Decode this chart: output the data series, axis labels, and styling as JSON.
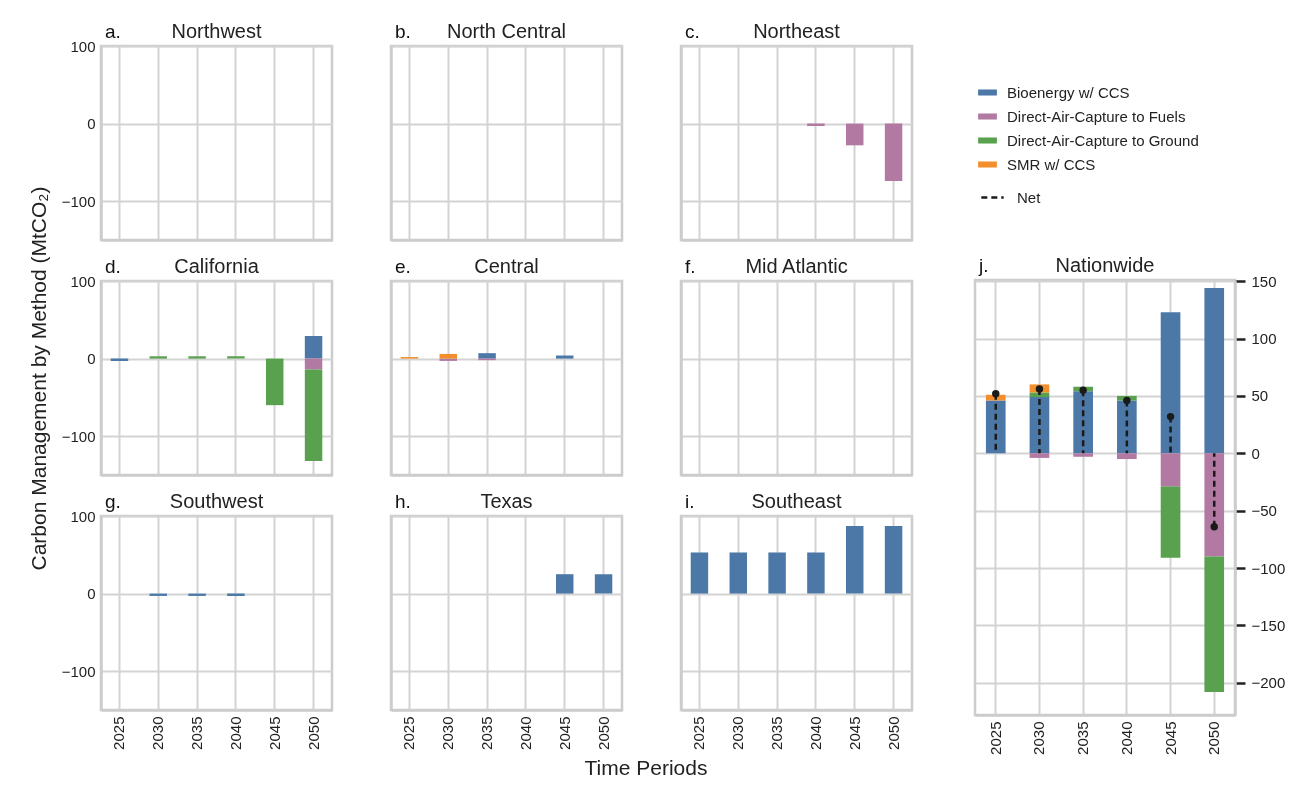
{
  "chart_data": [
    {
      "type": "bar",
      "title": "Northwest",
      "annotations": [
        "a."
      ],
      "stacked": true,
      "categories": [
        "2025",
        "2030",
        "2035",
        "2040",
        "2045",
        "2050"
      ],
      "ylim": [
        -150,
        100
      ],
      "yticks": [
        -100,
        0,
        100
      ],
      "grid": true,
      "tick_labels": "y",
      "series": [
        {
          "color": "#4c78a8",
          "values": [
            0,
            0,
            0,
            0,
            0,
            0
          ]
        }
      ]
    },
    {
      "type": "bar",
      "title": "North Central",
      "annotations": [
        "b."
      ],
      "stacked": true,
      "categories": [
        "2025",
        "2030",
        "2035",
        "2040",
        "2045",
        "2050"
      ],
      "ylim": [
        -150,
        100
      ],
      "yticks": [
        -100,
        0,
        100
      ],
      "grid": true,
      "tick_labels": false,
      "series": [
        {
          "color": "#4c78a8",
          "values": [
            0,
            0,
            0,
            0,
            0,
            0
          ]
        }
      ]
    },
    {
      "type": "bar",
      "title": "Northeast",
      "annotations": [
        "c."
      ],
      "stacked": true,
      "categories": [
        "2025",
        "2030",
        "2035",
        "2040",
        "2045",
        "2050"
      ],
      "ylim": [
        -150,
        100
      ],
      "yticks": [
        -100,
        0,
        100
      ],
      "grid": true,
      "tick_labels": false,
      "series": [
        {
          "color": "#b279a2",
          "values": [
            0,
            0,
            0,
            -3,
            -28,
            -74
          ]
        }
      ]
    },
    {
      "type": "bar",
      "title": "California",
      "annotations": [
        "d."
      ],
      "ylabel": "Carbon Management by Method (MtCO₂)",
      "stacked": true,
      "categories": [
        "2025",
        "2030",
        "2035",
        "2040",
        "2045",
        "2050"
      ],
      "ylim": [
        -150,
        100
      ],
      "yticks": [
        -100,
        0,
        100
      ],
      "grid": true,
      "tick_labels": "y",
      "series": [
        {
          "color": "#4c78a8",
          "values": [
            -3,
            0,
            0,
            0,
            0,
            29
          ]
        },
        {
          "color": "#b279a2",
          "values": [
            0,
            0,
            0,
            0,
            0,
            -14
          ]
        },
        {
          "color": "#59a14f",
          "values": [
            0,
            3,
            3,
            3,
            -60,
            -118
          ]
        }
      ]
    },
    {
      "type": "bar",
      "title": "Central",
      "annotations": [
        "e."
      ],
      "stacked": true,
      "categories": [
        "2025",
        "2030",
        "2035",
        "2040",
        "2045",
        "2050"
      ],
      "ylim": [
        -150,
        100
      ],
      "yticks": [
        -100,
        0,
        100
      ],
      "grid": true,
      "tick_labels": false,
      "series": [
        {
          "color": "#4c78a8",
          "values": [
            0,
            0,
            7,
            0,
            4,
            0
          ]
        },
        {
          "color": "#b279a2",
          "values": [
            0,
            -3,
            -2,
            0,
            0,
            0
          ]
        },
        {
          "color": "#f28e2b",
          "values": [
            2,
            6,
            0,
            0,
            0,
            0
          ]
        }
      ]
    },
    {
      "type": "bar",
      "title": "Mid Atlantic",
      "annotations": [
        "f."
      ],
      "stacked": true,
      "categories": [
        "2025",
        "2030",
        "2035",
        "2040",
        "2045",
        "2050"
      ],
      "ylim": [
        -150,
        100
      ],
      "yticks": [
        -100,
        0,
        100
      ],
      "grid": true,
      "tick_labels": false,
      "series": [
        {
          "color": "#4c78a8",
          "values": [
            0,
            0,
            0,
            0,
            0,
            0
          ]
        }
      ]
    },
    {
      "type": "bar",
      "title": "Southwest",
      "annotations": [
        "g."
      ],
      "stacked": true,
      "categories": [
        "2025",
        "2030",
        "2035",
        "2040",
        "2045",
        "2050"
      ],
      "ylim": [
        -150,
        100
      ],
      "yticks": [
        -100,
        0,
        100
      ],
      "grid": true,
      "series": [
        {
          "color": "#4c78a8",
          "values": [
            0,
            -3,
            -3,
            -3,
            0,
            0
          ]
        }
      ]
    },
    {
      "type": "bar",
      "title": "Texas",
      "annotations": [
        "h."
      ],
      "xlabel": "Time Periods",
      "stacked": true,
      "categories": [
        "2025",
        "2030",
        "2035",
        "2040",
        "2045",
        "2050"
      ],
      "ylim": [
        -150,
        100
      ],
      "yticks": [
        -100,
        0,
        100
      ],
      "grid": true,
      "tick_labels": "x",
      "series": [
        {
          "color": "#4c78a8",
          "values": [
            0,
            0,
            0,
            0,
            25,
            25
          ]
        }
      ]
    },
    {
      "type": "bar",
      "title": "Southeast",
      "annotations": [
        "i."
      ],
      "stacked": true,
      "categories": [
        "2025",
        "2030",
        "2035",
        "2040",
        "2045",
        "2050"
      ],
      "ylim": [
        -150,
        100
      ],
      "yticks": [
        -100,
        0,
        100
      ],
      "grid": true,
      "tick_labels": "x",
      "series": [
        {
          "color": "#4c78a8",
          "values": [
            53,
            53,
            53,
            53,
            87,
            87
          ]
        }
      ]
    },
    {
      "type": "bar",
      "title": "Nationwide",
      "annotations": [
        "j."
      ],
      "stacked": true,
      "categories": [
        "2025",
        "2030",
        "2035",
        "2040",
        "2045",
        "2050"
      ],
      "ylim": [
        -228,
        151
      ],
      "yticks": [
        -200,
        -150,
        -100,
        -50,
        0,
        50,
        100,
        150
      ],
      "grid": true,
      "legend": "top",
      "series": [
        {
          "name": "Bioenergy w/ CCS",
          "color": "#4c78a8",
          "values": [
            46,
            49,
            54,
            46,
            123,
            144
          ]
        },
        {
          "name": "Direct-Air-Capture to Fuels",
          "color": "#b279a2",
          "values": [
            0,
            -4,
            -3,
            -5,
            -29,
            -90
          ]
        },
        {
          "name": "Direct-Air-Capture to Ground",
          "color": "#59a14f",
          "values": [
            0,
            4,
            4,
            4,
            -62,
            -118
          ]
        },
        {
          "name": "SMR w/ CCS",
          "color": "#f28e2b",
          "values": [
            5,
            7,
            0,
            0,
            0,
            0
          ]
        },
        {
          "name": "Net",
          "type": "lollipop",
          "color": "#1a1a1a",
          "line_style": "dashed",
          "marker": "circle",
          "values": [
            52,
            56,
            55,
            46,
            32,
            -64
          ]
        }
      ]
    }
  ]
}
